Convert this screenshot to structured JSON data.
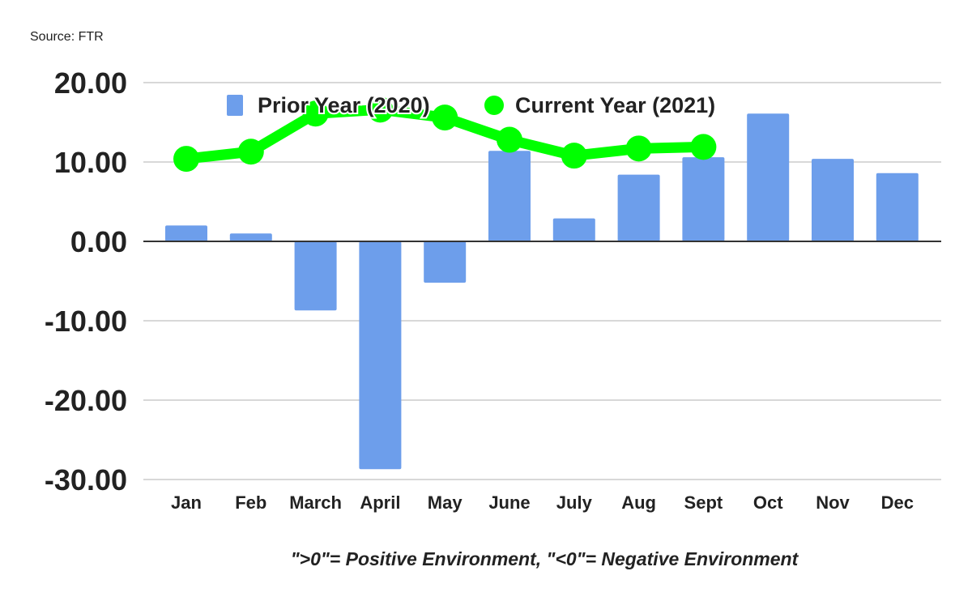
{
  "source": "Source: FTR",
  "chart_data": {
    "type": "bar+line",
    "categories": [
      "Jan",
      "Feb",
      "March",
      "April",
      "May",
      "June",
      "July",
      "Aug",
      "Sept",
      "Oct",
      "Nov",
      "Dec"
    ],
    "series": [
      {
        "name": "Prior Year (2020)",
        "type": "bar",
        "color": "#6d9eeb",
        "values": [
          2.0,
          1.0,
          -8.7,
          -28.7,
          -5.2,
          11.4,
          2.9,
          8.4,
          10.6,
          16.1,
          10.4,
          8.6
        ]
      },
      {
        "name": "Current Year (2021)",
        "type": "line",
        "color": "#00ff00",
        "values": [
          10.4,
          11.3,
          16.1,
          16.6,
          15.6,
          12.8,
          10.8,
          11.7,
          11.9,
          null,
          null,
          null
        ]
      }
    ],
    "yticks": [
      "20.00",
      "10.00",
      "0.00",
      "-10.00",
      "-20.00",
      "-30.00"
    ],
    "ylim": [
      -30,
      20
    ],
    "grid": true,
    "legend": "top",
    "xlabel": "\">0\"= Positive Environment, \"<0\"= Negative Environment"
  }
}
